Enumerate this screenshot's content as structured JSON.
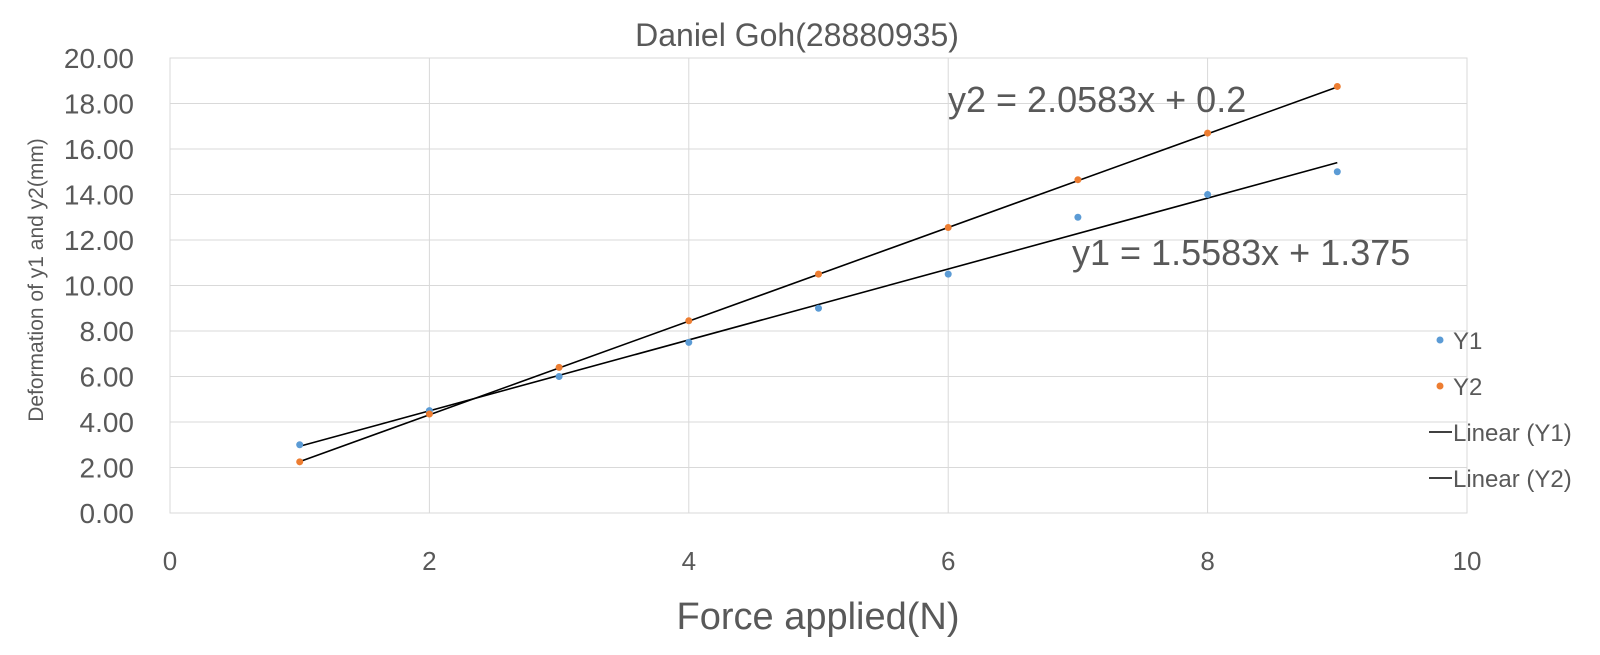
{
  "chart_data": {
    "type": "scatter",
    "title": "Daniel Goh(28880935)",
    "xlabel": "Force applied(N)",
    "ylabel": "Deformation of y1 and y2(mm)",
    "xlim": [
      0,
      10
    ],
    "ylim": [
      0,
      20
    ],
    "x_ticks": [
      "0",
      "2",
      "4",
      "6",
      "8",
      "10"
    ],
    "y_ticks": [
      "0.00",
      "2.00",
      "4.00",
      "6.00",
      "8.00",
      "10.00",
      "12.00",
      "14.00",
      "16.00",
      "18.00",
      "20.00"
    ],
    "grid": true,
    "legend_position": "right",
    "series": [
      {
        "name": "Y1",
        "color": "#5b9bd5",
        "x": [
          1,
          2,
          3,
          4,
          5,
          6,
          7,
          8,
          9
        ],
        "y": [
          3.0,
          4.5,
          6.0,
          7.5,
          9.0,
          10.5,
          13.0,
          14.0,
          15.0
        ]
      },
      {
        "name": "Y2",
        "color": "#ed7d31",
        "x": [
          1,
          2,
          3,
          4,
          5,
          6,
          7,
          8,
          9
        ],
        "y": [
          2.25,
          4.35,
          6.4,
          8.45,
          10.5,
          12.55,
          14.65,
          16.7,
          18.75
        ]
      }
    ],
    "trendlines": [
      {
        "name": "Linear (Y1)",
        "color": "#000000",
        "slope": 1.5583,
        "intercept": 1.375,
        "x_range": [
          1,
          9
        ],
        "equation": "y1 = 1.5583x + 1.375"
      },
      {
        "name": "Linear (Y2)",
        "color": "#000000",
        "slope": 2.0583,
        "intercept": 0.2,
        "x_range": [
          1,
          9
        ],
        "equation": "y2 = 2.0583x + 0.2"
      }
    ]
  }
}
